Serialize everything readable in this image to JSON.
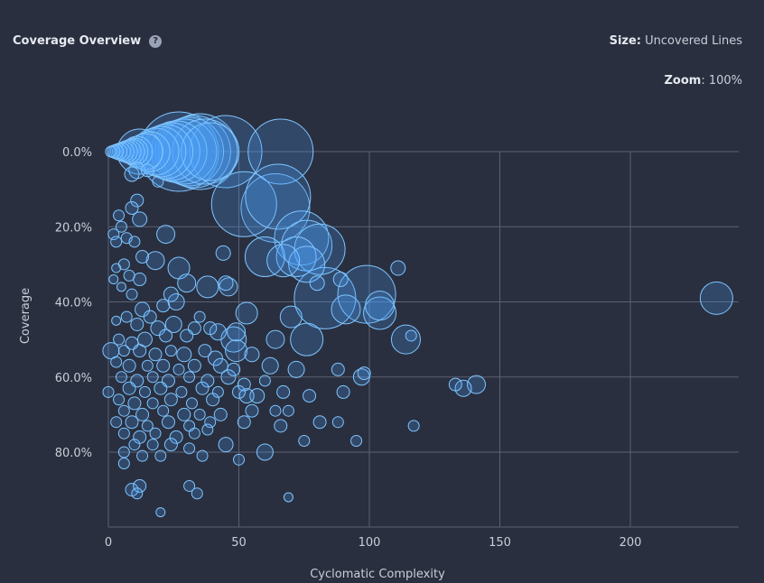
{
  "header": {
    "title": "Coverage Overview",
    "help_icon": "?",
    "size_label": "Size:",
    "size_value": "Uncovered Lines",
    "zoom_label": "Zoom",
    "zoom_value": "100%"
  },
  "colors": {
    "background": "#2a2f3f",
    "bubble_fill": "#4da6ff",
    "bubble_stroke": "#7fc6ff",
    "grid": "#5a6173"
  },
  "chart_data": {
    "type": "scatter",
    "title": "Coverage Overview",
    "xlabel": "Cyclomatic Complexity",
    "ylabel": "Coverage",
    "xlim": [
      0,
      240
    ],
    "ylim": [
      0,
      100
    ],
    "y_inverted": true,
    "x_ticks": [
      0,
      50,
      100,
      150,
      200
    ],
    "x_tick_labels": [
      "0",
      "50",
      "100",
      "150",
      "200"
    ],
    "y_ticks": [
      0,
      20,
      40,
      60,
      80
    ],
    "y_tick_labels": [
      "0.0%",
      "20.0%",
      "40.0%",
      "60.0%",
      "80.0%"
    ],
    "grid": true,
    "size_measure": "Uncovered Lines",
    "points": [
      {
        "x": 1,
        "y": 0,
        "s": 6
      },
      {
        "x": 2,
        "y": 0,
        "s": 7
      },
      {
        "x": 3,
        "y": 0,
        "s": 8
      },
      {
        "x": 4,
        "y": 0,
        "s": 9
      },
      {
        "x": 5,
        "y": 0,
        "s": 10
      },
      {
        "x": 6,
        "y": 0,
        "s": 11
      },
      {
        "x": 7,
        "y": 0,
        "s": 12
      },
      {
        "x": 8,
        "y": 0,
        "s": 13
      },
      {
        "x": 9,
        "y": 0,
        "s": 14
      },
      {
        "x": 10,
        "y": 0,
        "s": 15
      },
      {
        "x": 11,
        "y": 0,
        "s": 17
      },
      {
        "x": 12,
        "y": 0,
        "s": 25
      },
      {
        "x": 14,
        "y": 0,
        "s": 20
      },
      {
        "x": 16,
        "y": 0,
        "s": 22
      },
      {
        "x": 18,
        "y": 0,
        "s": 26
      },
      {
        "x": 20,
        "y": 0,
        "s": 28
      },
      {
        "x": 22,
        "y": 0,
        "s": 30
      },
      {
        "x": 24,
        "y": 0,
        "s": 32
      },
      {
        "x": 26,
        "y": 0,
        "s": 34
      },
      {
        "x": 27,
        "y": 0,
        "s": 44
      },
      {
        "x": 29,
        "y": 0,
        "s": 36
      },
      {
        "x": 31,
        "y": 0,
        "s": 38
      },
      {
        "x": 33,
        "y": 0,
        "s": 40
      },
      {
        "x": 35,
        "y": 0,
        "s": 42
      },
      {
        "x": 37,
        "y": 0,
        "s": 36
      },
      {
        "x": 39,
        "y": 0,
        "s": 32
      },
      {
        "x": 45,
        "y": 0,
        "s": 40
      },
      {
        "x": 66,
        "y": 0,
        "s": 36
      },
      {
        "x": 9,
        "y": 6,
        "s": 8
      },
      {
        "x": 11,
        "y": 5,
        "s": 9
      },
      {
        "x": 15,
        "y": 5,
        "s": 7
      },
      {
        "x": 19,
        "y": 8,
        "s": 6
      },
      {
        "x": 52,
        "y": 14,
        "s": 36
      },
      {
        "x": 64,
        "y": 15,
        "s": 38
      },
      {
        "x": 65,
        "y": 12,
        "s": 36
      },
      {
        "x": 74,
        "y": 23,
        "s": 30
      },
      {
        "x": 76,
        "y": 25,
        "s": 28
      },
      {
        "x": 81,
        "y": 26,
        "s": 28
      },
      {
        "x": 72,
        "y": 28,
        "s": 22
      },
      {
        "x": 67,
        "y": 29,
        "s": 18
      },
      {
        "x": 76,
        "y": 30,
        "s": 20
      },
      {
        "x": 60,
        "y": 28,
        "s": 22
      },
      {
        "x": 83,
        "y": 39,
        "s": 34
      },
      {
        "x": 99,
        "y": 38,
        "s": 32
      },
      {
        "x": 104,
        "y": 41,
        "s": 16
      },
      {
        "x": 104,
        "y": 43,
        "s": 18
      },
      {
        "x": 91,
        "y": 42,
        "s": 16
      },
      {
        "x": 89,
        "y": 34,
        "s": 8
      },
      {
        "x": 111,
        "y": 31,
        "s": 8
      },
      {
        "x": 80,
        "y": 35,
        "s": 8
      },
      {
        "x": 233,
        "y": 39,
        "s": 18
      },
      {
        "x": 114,
        "y": 50,
        "s": 16
      },
      {
        "x": 116,
        "y": 49,
        "s": 6
      },
      {
        "x": 76,
        "y": 50,
        "s": 18
      },
      {
        "x": 70,
        "y": 44,
        "s": 12
      },
      {
        "x": 53,
        "y": 43,
        "s": 12
      },
      {
        "x": 64,
        "y": 50,
        "s": 10
      },
      {
        "x": 48,
        "y": 50,
        "s": 14
      },
      {
        "x": 49,
        "y": 53,
        "s": 12
      },
      {
        "x": 49,
        "y": 48,
        "s": 10
      },
      {
        "x": 38,
        "y": 36,
        "s": 12
      },
      {
        "x": 46,
        "y": 36,
        "s": 10
      },
      {
        "x": 45,
        "y": 35,
        "s": 8
      },
      {
        "x": 30,
        "y": 35,
        "s": 10
      },
      {
        "x": 27,
        "y": 31,
        "s": 12
      },
      {
        "x": 22,
        "y": 22,
        "s": 10
      },
      {
        "x": 18,
        "y": 29,
        "s": 10
      },
      {
        "x": 44,
        "y": 27,
        "s": 8
      },
      {
        "x": 12,
        "y": 18,
        "s": 8
      },
      {
        "x": 11,
        "y": 13,
        "s": 7
      },
      {
        "x": 9,
        "y": 15,
        "s": 7
      },
      {
        "x": 4,
        "y": 17,
        "s": 6
      },
      {
        "x": 5,
        "y": 20,
        "s": 6
      },
      {
        "x": 2,
        "y": 22,
        "s": 6
      },
      {
        "x": 3,
        "y": 24,
        "s": 6
      },
      {
        "x": 7,
        "y": 23,
        "s": 6
      },
      {
        "x": 10,
        "y": 24,
        "s": 6
      },
      {
        "x": 13,
        "y": 28,
        "s": 7
      },
      {
        "x": 6,
        "y": 30,
        "s": 6
      },
      {
        "x": 3,
        "y": 31,
        "s": 5
      },
      {
        "x": 8,
        "y": 33,
        "s": 6
      },
      {
        "x": 12,
        "y": 34,
        "s": 7
      },
      {
        "x": 5,
        "y": 36,
        "s": 5
      },
      {
        "x": 9,
        "y": 38,
        "s": 6
      },
      {
        "x": 2,
        "y": 34,
        "s": 5
      },
      {
        "x": 24,
        "y": 38,
        "s": 8
      },
      {
        "x": 26,
        "y": 40,
        "s": 9
      },
      {
        "x": 21,
        "y": 41,
        "s": 7
      },
      {
        "x": 13,
        "y": 42,
        "s": 8
      },
      {
        "x": 16,
        "y": 44,
        "s": 7
      },
      {
        "x": 7,
        "y": 44,
        "s": 6
      },
      {
        "x": 3,
        "y": 45,
        "s": 5
      },
      {
        "x": 11,
        "y": 46,
        "s": 7
      },
      {
        "x": 19,
        "y": 47,
        "s": 8
      },
      {
        "x": 25,
        "y": 46,
        "s": 9
      },
      {
        "x": 33,
        "y": 47,
        "s": 7
      },
      {
        "x": 39,
        "y": 47,
        "s": 7
      },
      {
        "x": 42,
        "y": 48,
        "s": 9
      },
      {
        "x": 35,
        "y": 44,
        "s": 6
      },
      {
        "x": 30,
        "y": 49,
        "s": 7
      },
      {
        "x": 22,
        "y": 49,
        "s": 7
      },
      {
        "x": 14,
        "y": 50,
        "s": 8
      },
      {
        "x": 9,
        "y": 51,
        "s": 7
      },
      {
        "x": 4,
        "y": 50,
        "s": 6
      },
      {
        "x": 1,
        "y": 53,
        "s": 9
      },
      {
        "x": 6,
        "y": 53,
        "s": 6
      },
      {
        "x": 12,
        "y": 53,
        "s": 7
      },
      {
        "x": 18,
        "y": 54,
        "s": 7
      },
      {
        "x": 24,
        "y": 53,
        "s": 6
      },
      {
        "x": 29,
        "y": 54,
        "s": 8
      },
      {
        "x": 37,
        "y": 53,
        "s": 7
      },
      {
        "x": 41,
        "y": 55,
        "s": 8
      },
      {
        "x": 55,
        "y": 54,
        "s": 8
      },
      {
        "x": 3,
        "y": 56,
        "s": 6
      },
      {
        "x": 8,
        "y": 57,
        "s": 7
      },
      {
        "x": 15,
        "y": 57,
        "s": 6
      },
      {
        "x": 21,
        "y": 57,
        "s": 7
      },
      {
        "x": 27,
        "y": 58,
        "s": 6
      },
      {
        "x": 33,
        "y": 57,
        "s": 7
      },
      {
        "x": 43,
        "y": 57,
        "s": 8
      },
      {
        "x": 48,
        "y": 58,
        "s": 7
      },
      {
        "x": 62,
        "y": 57,
        "s": 9
      },
      {
        "x": 72,
        "y": 58,
        "s": 9
      },
      {
        "x": 88,
        "y": 58,
        "s": 7
      },
      {
        "x": 98,
        "y": 59,
        "s": 7
      },
      {
        "x": 5,
        "y": 60,
        "s": 6
      },
      {
        "x": 11,
        "y": 61,
        "s": 7
      },
      {
        "x": 17,
        "y": 60,
        "s": 6
      },
      {
        "x": 23,
        "y": 61,
        "s": 7
      },
      {
        "x": 31,
        "y": 60,
        "s": 6
      },
      {
        "x": 38,
        "y": 61,
        "s": 7
      },
      {
        "x": 46,
        "y": 60,
        "s": 8
      },
      {
        "x": 52,
        "y": 62,
        "s": 7
      },
      {
        "x": 60,
        "y": 61,
        "s": 6
      },
      {
        "x": 97,
        "y": 60,
        "s": 9
      },
      {
        "x": 8,
        "y": 63,
        "s": 7
      },
      {
        "x": 14,
        "y": 64,
        "s": 6
      },
      {
        "x": 20,
        "y": 63,
        "s": 7
      },
      {
        "x": 28,
        "y": 64,
        "s": 6
      },
      {
        "x": 36,
        "y": 63,
        "s": 7
      },
      {
        "x": 42,
        "y": 64,
        "s": 6
      },
      {
        "x": 50,
        "y": 64,
        "s": 7
      },
      {
        "x": 57,
        "y": 65,
        "s": 8
      },
      {
        "x": 67,
        "y": 64,
        "s": 7
      },
      {
        "x": 77,
        "y": 65,
        "s": 7
      },
      {
        "x": 90,
        "y": 64,
        "s": 7
      },
      {
        "x": 133,
        "y": 62,
        "s": 7
      },
      {
        "x": 136,
        "y": 63,
        "s": 9
      },
      {
        "x": 141,
        "y": 62,
        "s": 10
      },
      {
        "x": 0,
        "y": 64,
        "s": 6
      },
      {
        "x": 4,
        "y": 66,
        "s": 6
      },
      {
        "x": 10,
        "y": 67,
        "s": 7
      },
      {
        "x": 17,
        "y": 67,
        "s": 6
      },
      {
        "x": 24,
        "y": 66,
        "s": 7
      },
      {
        "x": 32,
        "y": 67,
        "s": 6
      },
      {
        "x": 40,
        "y": 66,
        "s": 7
      },
      {
        "x": 53,
        "y": 65,
        "s": 8
      },
      {
        "x": 6,
        "y": 69,
        "s": 6
      },
      {
        "x": 13,
        "y": 70,
        "s": 7
      },
      {
        "x": 21,
        "y": 69,
        "s": 6
      },
      {
        "x": 29,
        "y": 70,
        "s": 7
      },
      {
        "x": 35,
        "y": 70,
        "s": 6
      },
      {
        "x": 43,
        "y": 70,
        "s": 7
      },
      {
        "x": 55,
        "y": 69,
        "s": 7
      },
      {
        "x": 64,
        "y": 69,
        "s": 6
      },
      {
        "x": 69,
        "y": 69,
        "s": 6
      },
      {
        "x": 3,
        "y": 72,
        "s": 6
      },
      {
        "x": 9,
        "y": 72,
        "s": 7
      },
      {
        "x": 15,
        "y": 73,
        "s": 6
      },
      {
        "x": 23,
        "y": 72,
        "s": 7
      },
      {
        "x": 31,
        "y": 73,
        "s": 6
      },
      {
        "x": 39,
        "y": 72,
        "s": 6
      },
      {
        "x": 52,
        "y": 72,
        "s": 7
      },
      {
        "x": 81,
        "y": 72,
        "s": 7
      },
      {
        "x": 88,
        "y": 72,
        "s": 6
      },
      {
        "x": 117,
        "y": 73,
        "s": 6
      },
      {
        "x": 6,
        "y": 75,
        "s": 6
      },
      {
        "x": 12,
        "y": 76,
        "s": 7
      },
      {
        "x": 18,
        "y": 75,
        "s": 6
      },
      {
        "x": 26,
        "y": 76,
        "s": 7
      },
      {
        "x": 33,
        "y": 75,
        "s": 6
      },
      {
        "x": 38,
        "y": 74,
        "s": 6
      },
      {
        "x": 66,
        "y": 73,
        "s": 7
      },
      {
        "x": 10,
        "y": 78,
        "s": 6
      },
      {
        "x": 17,
        "y": 78,
        "s": 6
      },
      {
        "x": 24,
        "y": 78,
        "s": 7
      },
      {
        "x": 31,
        "y": 79,
        "s": 6
      },
      {
        "x": 45,
        "y": 78,
        "s": 8
      },
      {
        "x": 75,
        "y": 77,
        "s": 6
      },
      {
        "x": 95,
        "y": 77,
        "s": 6
      },
      {
        "x": 60,
        "y": 80,
        "s": 9
      },
      {
        "x": 6,
        "y": 80,
        "s": 6
      },
      {
        "x": 13,
        "y": 81,
        "s": 6
      },
      {
        "x": 20,
        "y": 81,
        "s": 6
      },
      {
        "x": 36,
        "y": 81,
        "s": 6
      },
      {
        "x": 50,
        "y": 82,
        "s": 6
      },
      {
        "x": 6,
        "y": 83,
        "s": 6
      },
      {
        "x": 9,
        "y": 90,
        "s": 7
      },
      {
        "x": 12,
        "y": 89,
        "s": 7
      },
      {
        "x": 11,
        "y": 91,
        "s": 6
      },
      {
        "x": 31,
        "y": 89,
        "s": 6
      },
      {
        "x": 34,
        "y": 91,
        "s": 6
      },
      {
        "x": 69,
        "y": 92,
        "s": 5
      },
      {
        "x": 20,
        "y": 96,
        "s": 5
      }
    ]
  }
}
